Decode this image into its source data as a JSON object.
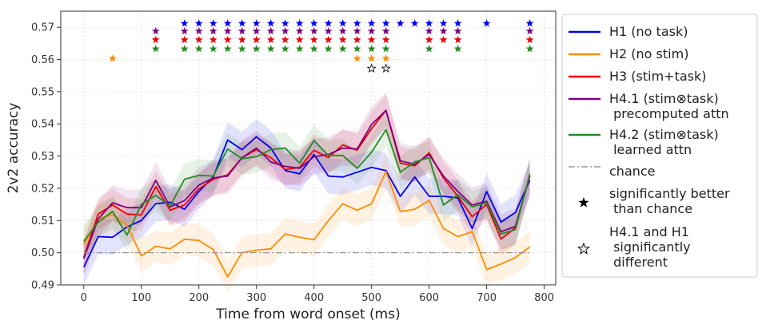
{
  "chart_data": {
    "type": "line",
    "title": "",
    "xlabel": "Time from word onset (ms)",
    "ylabel": "2v2 accuracy",
    "xlim": [
      -40,
      820
    ],
    "ylim": [
      0.49,
      0.575
    ],
    "xticks": [
      0,
      100,
      200,
      300,
      400,
      500,
      600,
      700,
      800
    ],
    "yticks": [
      0.49,
      0.5,
      0.51,
      0.52,
      0.53,
      0.54,
      0.55,
      0.56,
      0.57
    ],
    "grid": true,
    "legend_position": "right",
    "x": [
      0,
      25,
      50,
      75,
      100,
      125,
      150,
      175,
      200,
      225,
      250,
      275,
      300,
      325,
      350,
      375,
      400,
      425,
      450,
      475,
      500,
      525,
      550,
      575,
      600,
      625,
      650,
      675,
      700,
      725,
      750,
      775
    ],
    "series": [
      {
        "name": "H1 (no task)",
        "color": "#0000ee",
        "band": 0.0055,
        "values": [
          0.4955,
          0.505,
          0.5048,
          0.508,
          0.51,
          0.5152,
          0.5157,
          0.5135,
          0.519,
          0.5235,
          0.535,
          0.532,
          0.536,
          0.5325,
          0.5255,
          0.5245,
          0.5305,
          0.5238,
          0.5235,
          0.525,
          0.5265,
          0.5255,
          0.5175,
          0.5235,
          0.5175,
          0.5175,
          0.517,
          0.5075,
          0.519,
          0.5095,
          0.5125,
          0.5225
        ]
      },
      {
        "name": "H2 (no stim)",
        "color": "#ff8c00",
        "band": 0.005,
        "values": [
          0.5025,
          0.5105,
          0.5118,
          0.5085,
          0.499,
          0.502,
          0.5012,
          0.5042,
          0.5038,
          0.501,
          0.4925,
          0.5,
          0.5008,
          0.5012,
          0.5058,
          0.5048,
          0.504,
          0.51,
          0.5152,
          0.5132,
          0.5152,
          0.5252,
          0.5128,
          0.5135,
          0.5162,
          0.5075,
          0.505,
          0.5065,
          0.4948,
          0.4965,
          0.4985,
          0.5018
        ]
      },
      {
        "name": "H3 (stim+task)",
        "color": "#ee0000",
        "band": 0.005,
        "values": [
          0.4985,
          0.512,
          0.5148,
          0.512,
          0.5117,
          0.5205,
          0.5132,
          0.5148,
          0.5198,
          0.5228,
          0.5242,
          0.5295,
          0.532,
          0.5295,
          0.5258,
          0.5265,
          0.5318,
          0.5295,
          0.5335,
          0.5318,
          0.5385,
          0.5442,
          0.5278,
          0.527,
          0.531,
          0.5232,
          0.5175,
          0.5112,
          0.515,
          0.5042,
          0.5078,
          0.5238
        ]
      },
      {
        "name": "H4.1 (stim⊗task)\n precomputed attn",
        "color": "#800080",
        "band": 0.0055,
        "values": [
          0.4982,
          0.5105,
          0.5155,
          0.514,
          0.514,
          0.5225,
          0.5142,
          0.5162,
          0.521,
          0.5232,
          0.5238,
          0.5295,
          0.5325,
          0.5282,
          0.5268,
          0.5262,
          0.5298,
          0.5305,
          0.5325,
          0.5322,
          0.5398,
          0.5442,
          0.5285,
          0.5275,
          0.5305,
          0.5238,
          0.519,
          0.5148,
          0.516,
          0.5065,
          0.5082,
          0.5238
        ]
      },
      {
        "name": "H4.2 (stim⊗task)\n  learned attn",
        "color": "#228b22",
        "band": 0.005,
        "values": [
          0.5035,
          0.5095,
          0.5128,
          0.5055,
          0.515,
          0.5178,
          0.5145,
          0.5228,
          0.524,
          0.5238,
          0.5322,
          0.5292,
          0.5298,
          0.532,
          0.5325,
          0.5278,
          0.5348,
          0.5302,
          0.5302,
          0.5262,
          0.5312,
          0.5382,
          0.525,
          0.5282,
          0.5295,
          0.5148,
          0.518,
          0.5142,
          0.5155,
          0.5058,
          0.5072,
          0.5245
        ]
      },
      {
        "name": "chance",
        "color": "#999999",
        "style": "dashdot",
        "values_const": 0.5,
        "x_range": [
          0,
          775
        ]
      }
    ],
    "markers": {
      "significant_legend": "significantly better\n than chance",
      "different_legend": "H4.1 and H1\n significantly\n different",
      "rows": [
        {
          "series": "H1 (no task)",
          "y": 0.5712,
          "color": "#0000ee",
          "x": [
            175,
            200,
            225,
            250,
            275,
            300,
            325,
            350,
            375,
            400,
            425,
            450,
            475,
            500,
            525,
            550,
            575,
            600,
            625,
            650,
            700,
            775
          ]
        },
        {
          "series": "H4.1",
          "y": 0.5688,
          "color": "#800080",
          "x": [
            125,
            175,
            200,
            225,
            250,
            275,
            300,
            325,
            350,
            375,
            400,
            425,
            450,
            475,
            500,
            525,
            600,
            625,
            650,
            775
          ]
        },
        {
          "series": "H3 (stim+task)",
          "y": 0.5661,
          "color": "#ee0000",
          "x": [
            125,
            175,
            200,
            225,
            250,
            275,
            300,
            325,
            350,
            375,
            400,
            425,
            450,
            475,
            500,
            525,
            600,
            625,
            650,
            775
          ]
        },
        {
          "series": "H4.2",
          "y": 0.5633,
          "color": "#228b22",
          "x": [
            125,
            175,
            200,
            225,
            250,
            275,
            300,
            325,
            350,
            375,
            400,
            425,
            450,
            475,
            500,
            525,
            600,
            650,
            775
          ]
        },
        {
          "series": "H2 (no stim)",
          "y": 0.5603,
          "color": "#ff8c00",
          "x": [
            50,
            475,
            500,
            525
          ]
        }
      ],
      "different": {
        "y": 0.5572,
        "x": [
          500,
          525
        ]
      }
    }
  }
}
